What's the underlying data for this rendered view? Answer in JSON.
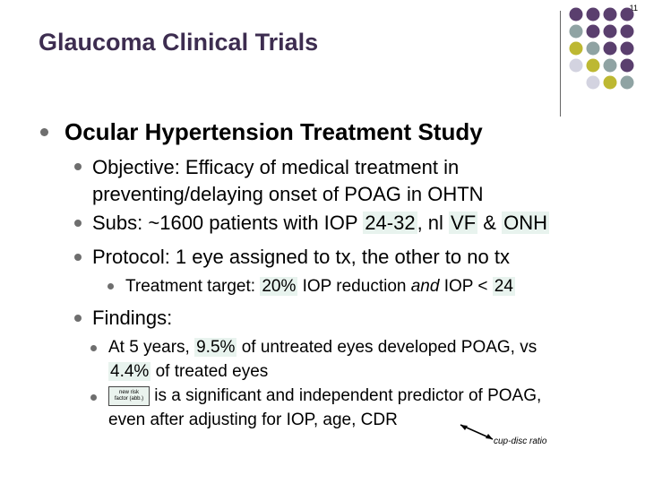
{
  "page_number": "11",
  "title": "Glaucoma Clinical Trials",
  "heading": "Ocular Hypertension Treatment Study",
  "objective": {
    "line1": "Objective: Efficacy of medical treatment in",
    "line2": "preventing/delaying onset of POAG in OHTN"
  },
  "subjects": {
    "prefix": "Subs: ~1600 patients with IOP ",
    "iop_range": "24-32",
    "mid1": ", nl ",
    "vf": "VF",
    "amp": " & ",
    "onh": "ONH"
  },
  "protocol": "Protocol: 1 eye assigned to tx, the other to no tx",
  "target": {
    "prefix": "Treatment target: ",
    "pct": "20%",
    "mid": " IOP reduction ",
    "and": "and",
    "mid2": " IOP < ",
    "val": "24"
  },
  "findings_label": "Findings:",
  "finding1": {
    "prefix": "At 5 years, ",
    "pct_untreated": "9.5%",
    "mid": " of untreated eyes developed POAG, vs",
    "pct_treated": "4.4%",
    "suffix": " of treated eyes"
  },
  "finding2": {
    "box_line1": "new risk",
    "box_line2": "factor (abb.)",
    "text": " is a significant and independent predictor of POAG,",
    "line2": "even after adjusting for IOP, age, CDR"
  },
  "annotation": "cup-disc ratio",
  "colors": {
    "title": "#3d2d50",
    "purple_dot": "#5a3f6e",
    "gray_dot": "#8fa3a3",
    "yellow_dot": "#bdb832",
    "light_dot": "#d3d3e0",
    "highlight": "#e8f3ee"
  }
}
